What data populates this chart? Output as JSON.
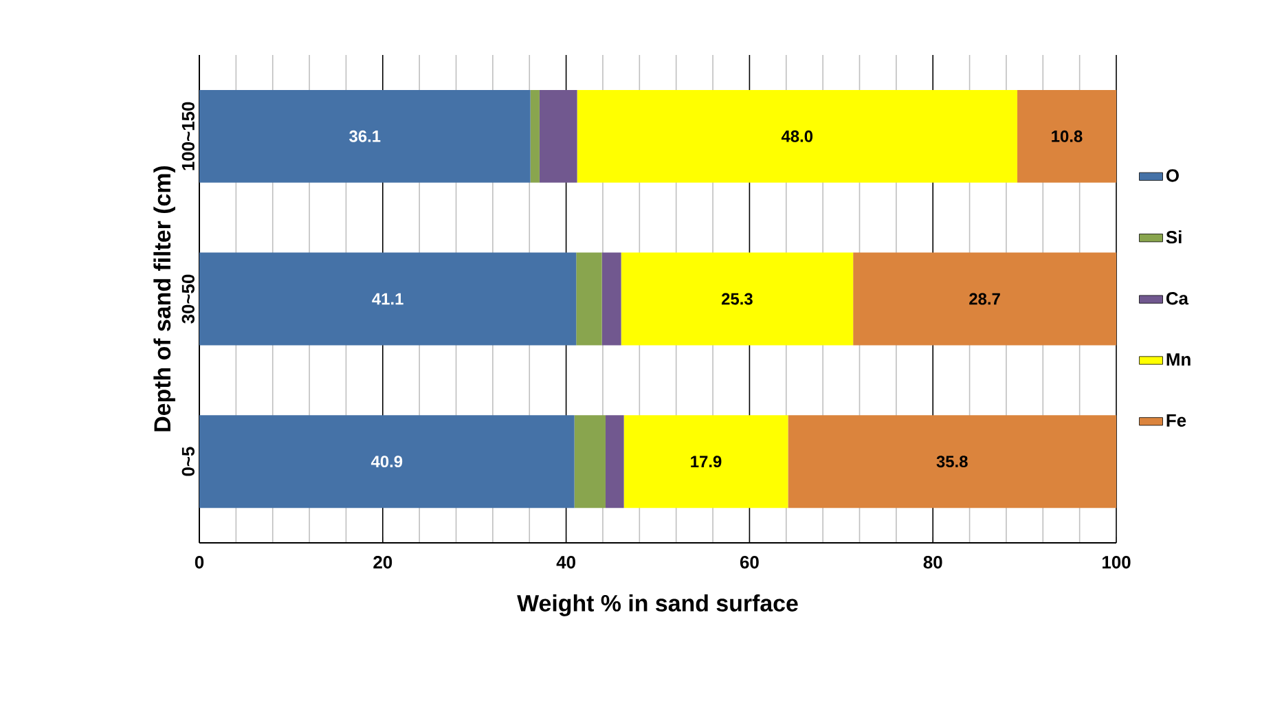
{
  "chart_data": {
    "type": "bar",
    "orientation": "horizontal",
    "stacked": true,
    "xlabel": "Weight % in sand surface",
    "ylabel": "Depth of sand filter (cm)",
    "categories": [
      "100~150",
      "30~50",
      "0~5"
    ],
    "series": [
      {
        "name": "O",
        "color": "#4572a7",
        "values": [
          36.1,
          41.1,
          40.9
        ],
        "value_labels": [
          "36.1",
          "41.1",
          "40.9"
        ]
      },
      {
        "name": "Si",
        "color": "#89a54e",
        "values": [
          1.0,
          2.8,
          3.4
        ]
      },
      {
        "name": "Ca",
        "color": "#71588f",
        "values": [
          4.1,
          2.1,
          2.0
        ]
      },
      {
        "name": "Mn",
        "color": "#ffff00",
        "values": [
          48.0,
          25.3,
          17.9
        ],
        "value_labels": [
          "48.0",
          "25.3",
          "17.9"
        ]
      },
      {
        "name": "Fe",
        "color": "#db843d",
        "values": [
          10.8,
          28.7,
          35.8
        ],
        "value_labels": [
          "10.8",
          "28.7",
          "35.8"
        ]
      }
    ],
    "xlim": [
      0,
      100
    ],
    "xticks": [
      0,
      20,
      40,
      60,
      80,
      100
    ],
    "grid": "x",
    "legend": "right"
  }
}
